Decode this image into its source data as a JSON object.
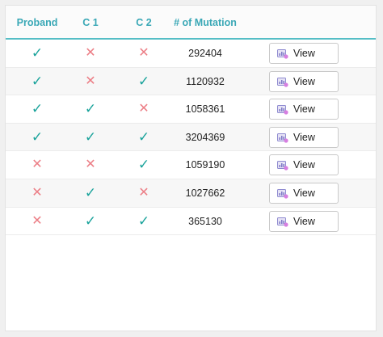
{
  "table": {
    "headers": {
      "proband": "Proband",
      "c1": "C 1",
      "c2": "C 2",
      "mutations": "# of Mutation"
    },
    "marks": {
      "yes": "✓",
      "no": "✕"
    },
    "colors": {
      "yes": "#1aa39b",
      "no": "#ec7e86",
      "accent": "#3aa8b6"
    },
    "view_icon": "chart-badge-icon",
    "rows": [
      {
        "proband": "yes",
        "c1": "no",
        "c2": "no",
        "mutations": "292404",
        "action": "View"
      },
      {
        "proband": "yes",
        "c1": "no",
        "c2": "yes",
        "mutations": "1120932",
        "action": "View"
      },
      {
        "proband": "yes",
        "c1": "yes",
        "c2": "no",
        "mutations": "1058361",
        "action": "View"
      },
      {
        "proband": "yes",
        "c1": "yes",
        "c2": "yes",
        "mutations": "3204369",
        "action": "View"
      },
      {
        "proband": "no",
        "c1": "no",
        "c2": "yes",
        "mutations": "1059190",
        "action": "View"
      },
      {
        "proband": "no",
        "c1": "yes",
        "c2": "no",
        "mutations": "1027662",
        "action": "View"
      },
      {
        "proband": "no",
        "c1": "yes",
        "c2": "yes",
        "mutations": "365130",
        "action": "View"
      }
    ]
  }
}
